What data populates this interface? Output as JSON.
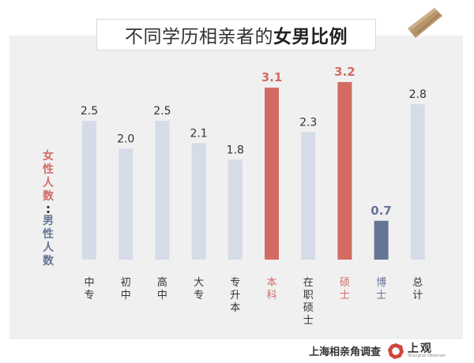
{
  "title": {
    "plain": "不同学历相亲者的",
    "highlight": "女男比例"
  },
  "y_label": {
    "numerator": "女性人数",
    "separator": ":",
    "denominator": "男性人数"
  },
  "footer": {
    "source": "上海相亲角调查",
    "brand_name": "上观",
    "brand_sub": "Shanghai Observer"
  },
  "colors": {
    "normal": "#d5dbe7",
    "high": "#d36b63",
    "low": "#667596",
    "text": "#333333",
    "frame": "#f0f0f1"
  },
  "chart_data": {
    "type": "bar",
    "categories": [
      "中专",
      "初中",
      "高中",
      "大专",
      "专升本",
      "本科",
      "在职硕士",
      "硕士",
      "博士",
      "总计"
    ],
    "values": [
      2.5,
      2.0,
      2.5,
      2.1,
      1.8,
      3.1,
      2.3,
      3.2,
      0.7,
      2.8
    ],
    "highlight": [
      "normal",
      "normal",
      "normal",
      "normal",
      "normal",
      "high",
      "normal",
      "high",
      "low",
      "normal"
    ],
    "title": "不同学历相亲者的女男比例",
    "ylabel": "女性人数：男性人数",
    "ylim": [
      0,
      3.2
    ]
  }
}
